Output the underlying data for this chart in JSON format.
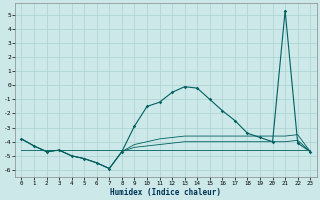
{
  "xlabel": "Humidex (Indice chaleur)",
  "ylabel": "",
  "background_color": "#cce8e8",
  "grid_color": "#aad0d0",
  "line_color": "#006060",
  "xlim": [
    -0.5,
    23.5
  ],
  "ylim": [
    -6.5,
    5.8
  ],
  "yticks": [
    -6,
    -5,
    -4,
    -3,
    -2,
    -1,
    0,
    1,
    2,
    3,
    4,
    5
  ],
  "xticks": [
    0,
    1,
    2,
    3,
    4,
    5,
    6,
    7,
    8,
    9,
    10,
    11,
    12,
    13,
    14,
    15,
    16,
    17,
    18,
    19,
    20,
    21,
    22,
    23
  ],
  "main_x": [
    0,
    1,
    2,
    3,
    4,
    5,
    6,
    7,
    8,
    9,
    10,
    11,
    12,
    13,
    14,
    15,
    16,
    17,
    18,
    19,
    20,
    21,
    22,
    23
  ],
  "main_y": [
    -3.8,
    -4.3,
    -4.7,
    -4.6,
    -5.0,
    -5.2,
    -5.5,
    -5.9,
    -4.7,
    -2.9,
    -1.5,
    -1.2,
    -0.5,
    -0.1,
    -0.2,
    -1.0,
    -1.8,
    -2.5,
    -3.4,
    -3.7,
    -4.0,
    5.3,
    -4.1,
    -4.7
  ],
  "curve2_y": [
    -3.8,
    -4.3,
    -4.7,
    -4.6,
    -5.0,
    -5.2,
    -5.5,
    -5.9,
    -4.7,
    -4.2,
    -4.0,
    -3.8,
    -3.7,
    -3.6,
    -3.6,
    -3.6,
    -3.6,
    -3.6,
    -3.6,
    -3.6,
    -3.6,
    -3.6,
    -3.5,
    -4.7
  ],
  "curve3_y": [
    -3.8,
    -4.3,
    -4.7,
    -4.6,
    -5.0,
    -5.2,
    -5.5,
    -5.9,
    -4.7,
    -4.4,
    -4.3,
    -4.2,
    -4.1,
    -4.0,
    -4.0,
    -4.0,
    -4.0,
    -4.0,
    -4.0,
    -4.0,
    -4.0,
    -4.0,
    -3.9,
    -4.7
  ],
  "curve4_y": [
    -4.6,
    -4.6,
    -4.6,
    -4.6,
    -4.6,
    -4.6,
    -4.6,
    -4.6,
    -4.6,
    -4.6,
    -4.6,
    -4.6,
    -4.6,
    -4.6,
    -4.6,
    -4.6,
    -4.6,
    -4.6,
    -4.6,
    -4.6,
    -4.6,
    -4.6,
    -4.6,
    -4.6
  ]
}
